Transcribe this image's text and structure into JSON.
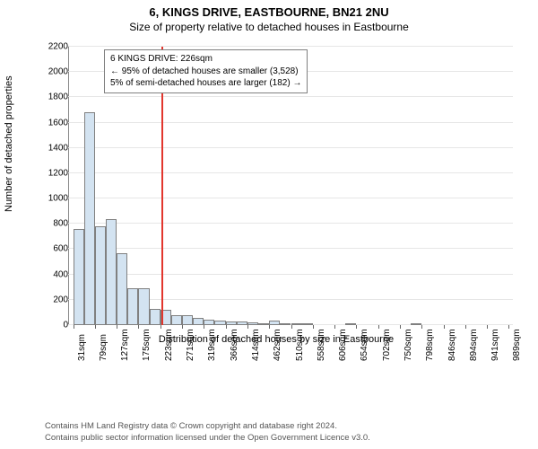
{
  "title_line1": "6, KINGS DRIVE, EASTBOURNE, BN21 2NU",
  "title_line2": "Size of property relative to detached houses in Eastbourne",
  "yaxis_label": "Number of detached properties",
  "xaxis_label": "Distribution of detached houses by size in Eastbourne",
  "info_box": {
    "line1": "6 KINGS DRIVE: 226sqm",
    "line2": "← 95% of detached houses are smaller (3,528)",
    "line3": "5% of semi-detached houses are larger (182) →"
  },
  "footer_line1": "Contains HM Land Registry data © Crown copyright and database right 2024.",
  "footer_line2": "Contains public sector information licensed under the Open Government Licence v3.0.",
  "chart": {
    "type": "histogram",
    "bar_color": "#d3e3f1",
    "bar_border_color": "#808080",
    "grid_color": "#e6e6e6",
    "refline_color": "#e2362d",
    "refline_x": 226,
    "background_color": "#ffffff",
    "title_fontsize": 13,
    "subtitle_fontsize": 12,
    "label_fontsize": 11,
    "tick_fontsize": 10,
    "xlim": [
      20,
      1000
    ],
    "ylim": [
      0,
      2200
    ],
    "ytick_step": 200,
    "xtick_step": 48,
    "xtick_start": 31,
    "bin_width": 24,
    "bins": [
      [
        31,
        760
      ],
      [
        55,
        1680
      ],
      [
        79,
        780
      ],
      [
        103,
        840
      ],
      [
        127,
        570
      ],
      [
        151,
        290
      ],
      [
        175,
        290
      ],
      [
        199,
        130
      ],
      [
        223,
        120
      ],
      [
        247,
        80
      ],
      [
        271,
        80
      ],
      [
        295,
        60
      ],
      [
        319,
        45
      ],
      [
        343,
        35
      ],
      [
        367,
        25
      ],
      [
        391,
        30
      ],
      [
        415,
        20
      ],
      [
        439,
        10
      ],
      [
        463,
        35
      ],
      [
        487,
        5
      ],
      [
        511,
        5
      ],
      [
        535,
        8
      ],
      [
        559,
        0
      ],
      [
        583,
        0
      ],
      [
        607,
        0
      ],
      [
        631,
        5
      ],
      [
        655,
        0
      ],
      [
        679,
        0
      ],
      [
        703,
        0
      ],
      [
        727,
        0
      ],
      [
        751,
        0
      ],
      [
        775,
        5
      ],
      [
        799,
        0
      ],
      [
        823,
        0
      ],
      [
        847,
        0
      ],
      [
        871,
        0
      ],
      [
        895,
        0
      ],
      [
        919,
        0
      ],
      [
        943,
        0
      ],
      [
        967,
        0
      ]
    ],
    "xtick_labels": [
      "31sqm",
      "79sqm",
      "127sqm",
      "175sqm",
      "223sqm",
      "271sqm",
      "319sqm",
      "366sqm",
      "414sqm",
      "462sqm",
      "510sqm",
      "558sqm",
      "606sqm",
      "654sqm",
      "702sqm",
      "750sqm",
      "798sqm",
      "846sqm",
      "894sqm",
      "941sqm",
      "989sqm"
    ]
  }
}
